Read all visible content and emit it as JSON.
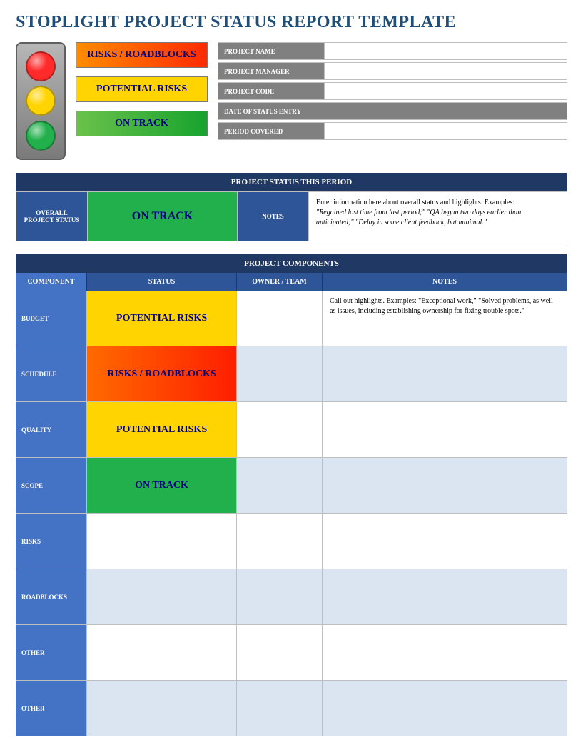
{
  "title": "STOPLIGHT PROJECT STATUS REPORT TEMPLATE",
  "colors": {
    "title": "#1f4e79",
    "sectionBar": "#1f3864",
    "headerBlue": "#2e5597",
    "componentBlue": "#4472c4",
    "altRow": "#dbe5f1",
    "metaGray": "#808080",
    "red": "#ff2a00",
    "yellow": "#ffd400",
    "green": "#21b04b",
    "textNavy": "#000080"
  },
  "legend": {
    "red": "RISKS / ROADBLOCKS",
    "yellow": "POTENTIAL RISKS",
    "green": "ON TRACK"
  },
  "meta": {
    "projectName": "PROJECT NAME",
    "projectManager": "PROJECT MANAGER",
    "projectCode": "PROJECT CODE",
    "dateOfStatusEntry": "DATE OF STATUS ENTRY",
    "periodCovered": "PERIOD COVERED"
  },
  "statusPeriod": {
    "sectionTitle": "PROJECT STATUS THIS PERIOD",
    "overallLabel": "OVERALL PROJECT STATUS",
    "status": "ON TRACK",
    "statusClass": "bg-green",
    "notesLabel": "NOTES",
    "notesLead": "Enter information here about overall status and highlights. Examples:",
    "notesItalic": "\"Regained lost time from last period;\" \"QA began two days earlier than anticipated;\" \"Delay in some client feedback, but minimal.\""
  },
  "components": {
    "sectionTitle": "PROJECT COMPONENTS",
    "headers": {
      "component": "COMPONENT",
      "status": "STATUS",
      "owner": "OWNER / TEAM",
      "notes": "NOTES"
    },
    "rows": [
      {
        "label": "BUDGET",
        "status": "POTENTIAL RISKS",
        "statusClass": "bg-yellow",
        "owner": "",
        "notes": "Call out highlights. Examples: \"Exceptional work,\" \"Solved problems, as well as issues, including establishing ownership for fixing trouble spots.\"",
        "alt": false
      },
      {
        "label": "SCHEDULE",
        "status": "RISKS / ROADBLOCKS",
        "statusClass": "bg-red",
        "owner": "",
        "notes": "",
        "alt": true
      },
      {
        "label": "QUALITY",
        "status": "POTENTIAL RISKS",
        "statusClass": "bg-yellow",
        "owner": "",
        "notes": "",
        "alt": false
      },
      {
        "label": "SCOPE",
        "status": "ON TRACK",
        "statusClass": "bg-green",
        "owner": "",
        "notes": "",
        "alt": true
      },
      {
        "label": "RISKS",
        "status": "",
        "statusClass": "",
        "owner": "",
        "notes": "",
        "alt": false
      },
      {
        "label": "ROADBLOCKS",
        "status": "",
        "statusClass": "",
        "owner": "",
        "notes": "",
        "alt": true
      },
      {
        "label": "OTHER",
        "status": "",
        "statusClass": "",
        "owner": "",
        "notes": "",
        "alt": false
      },
      {
        "label": "OTHER",
        "status": "",
        "statusClass": "",
        "owner": "",
        "notes": "",
        "alt": true
      }
    ]
  }
}
